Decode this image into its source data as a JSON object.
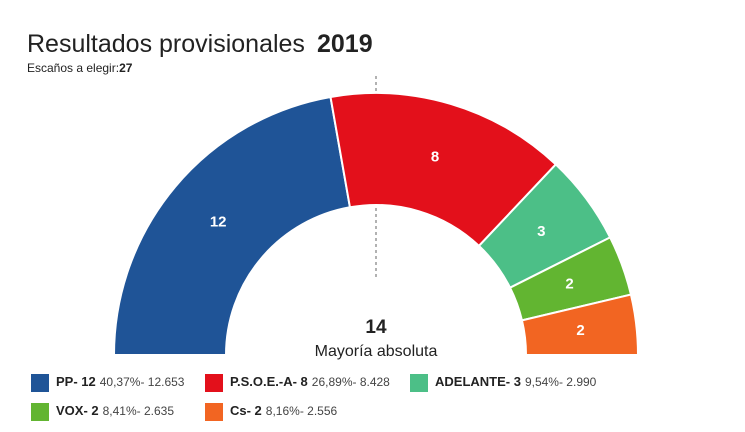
{
  "chart_data": {
    "type": "semi-donut",
    "title": "Resultados provisionales",
    "title_year": "2019",
    "subtitle": "Escaños a elegir:",
    "subtitle_value": 27,
    "center_value": 14,
    "center_label": "Mayoría absoluta",
    "categories": [
      "PP",
      "P.S.O.E.-A",
      "ADELANTE",
      "VOX",
      "Cs"
    ],
    "values": [
      12,
      8,
      3,
      2,
      2
    ],
    "colors": [
      "#1f5497",
      "#e3101b",
      "#4cbf87",
      "#62b531",
      "#f26522"
    ],
    "legend_labels": [
      "PP- 12",
      "P.S.O.E.-A- 8",
      "ADELANTE- 3",
      "VOX- 2",
      "Cs- 2"
    ],
    "legend_details": [
      "40,37%- 12.653",
      "26,89%- 8.428",
      "9,54%- 2.990",
      "8,41%- 2.635",
      "8,16%- 2.556"
    ]
  }
}
